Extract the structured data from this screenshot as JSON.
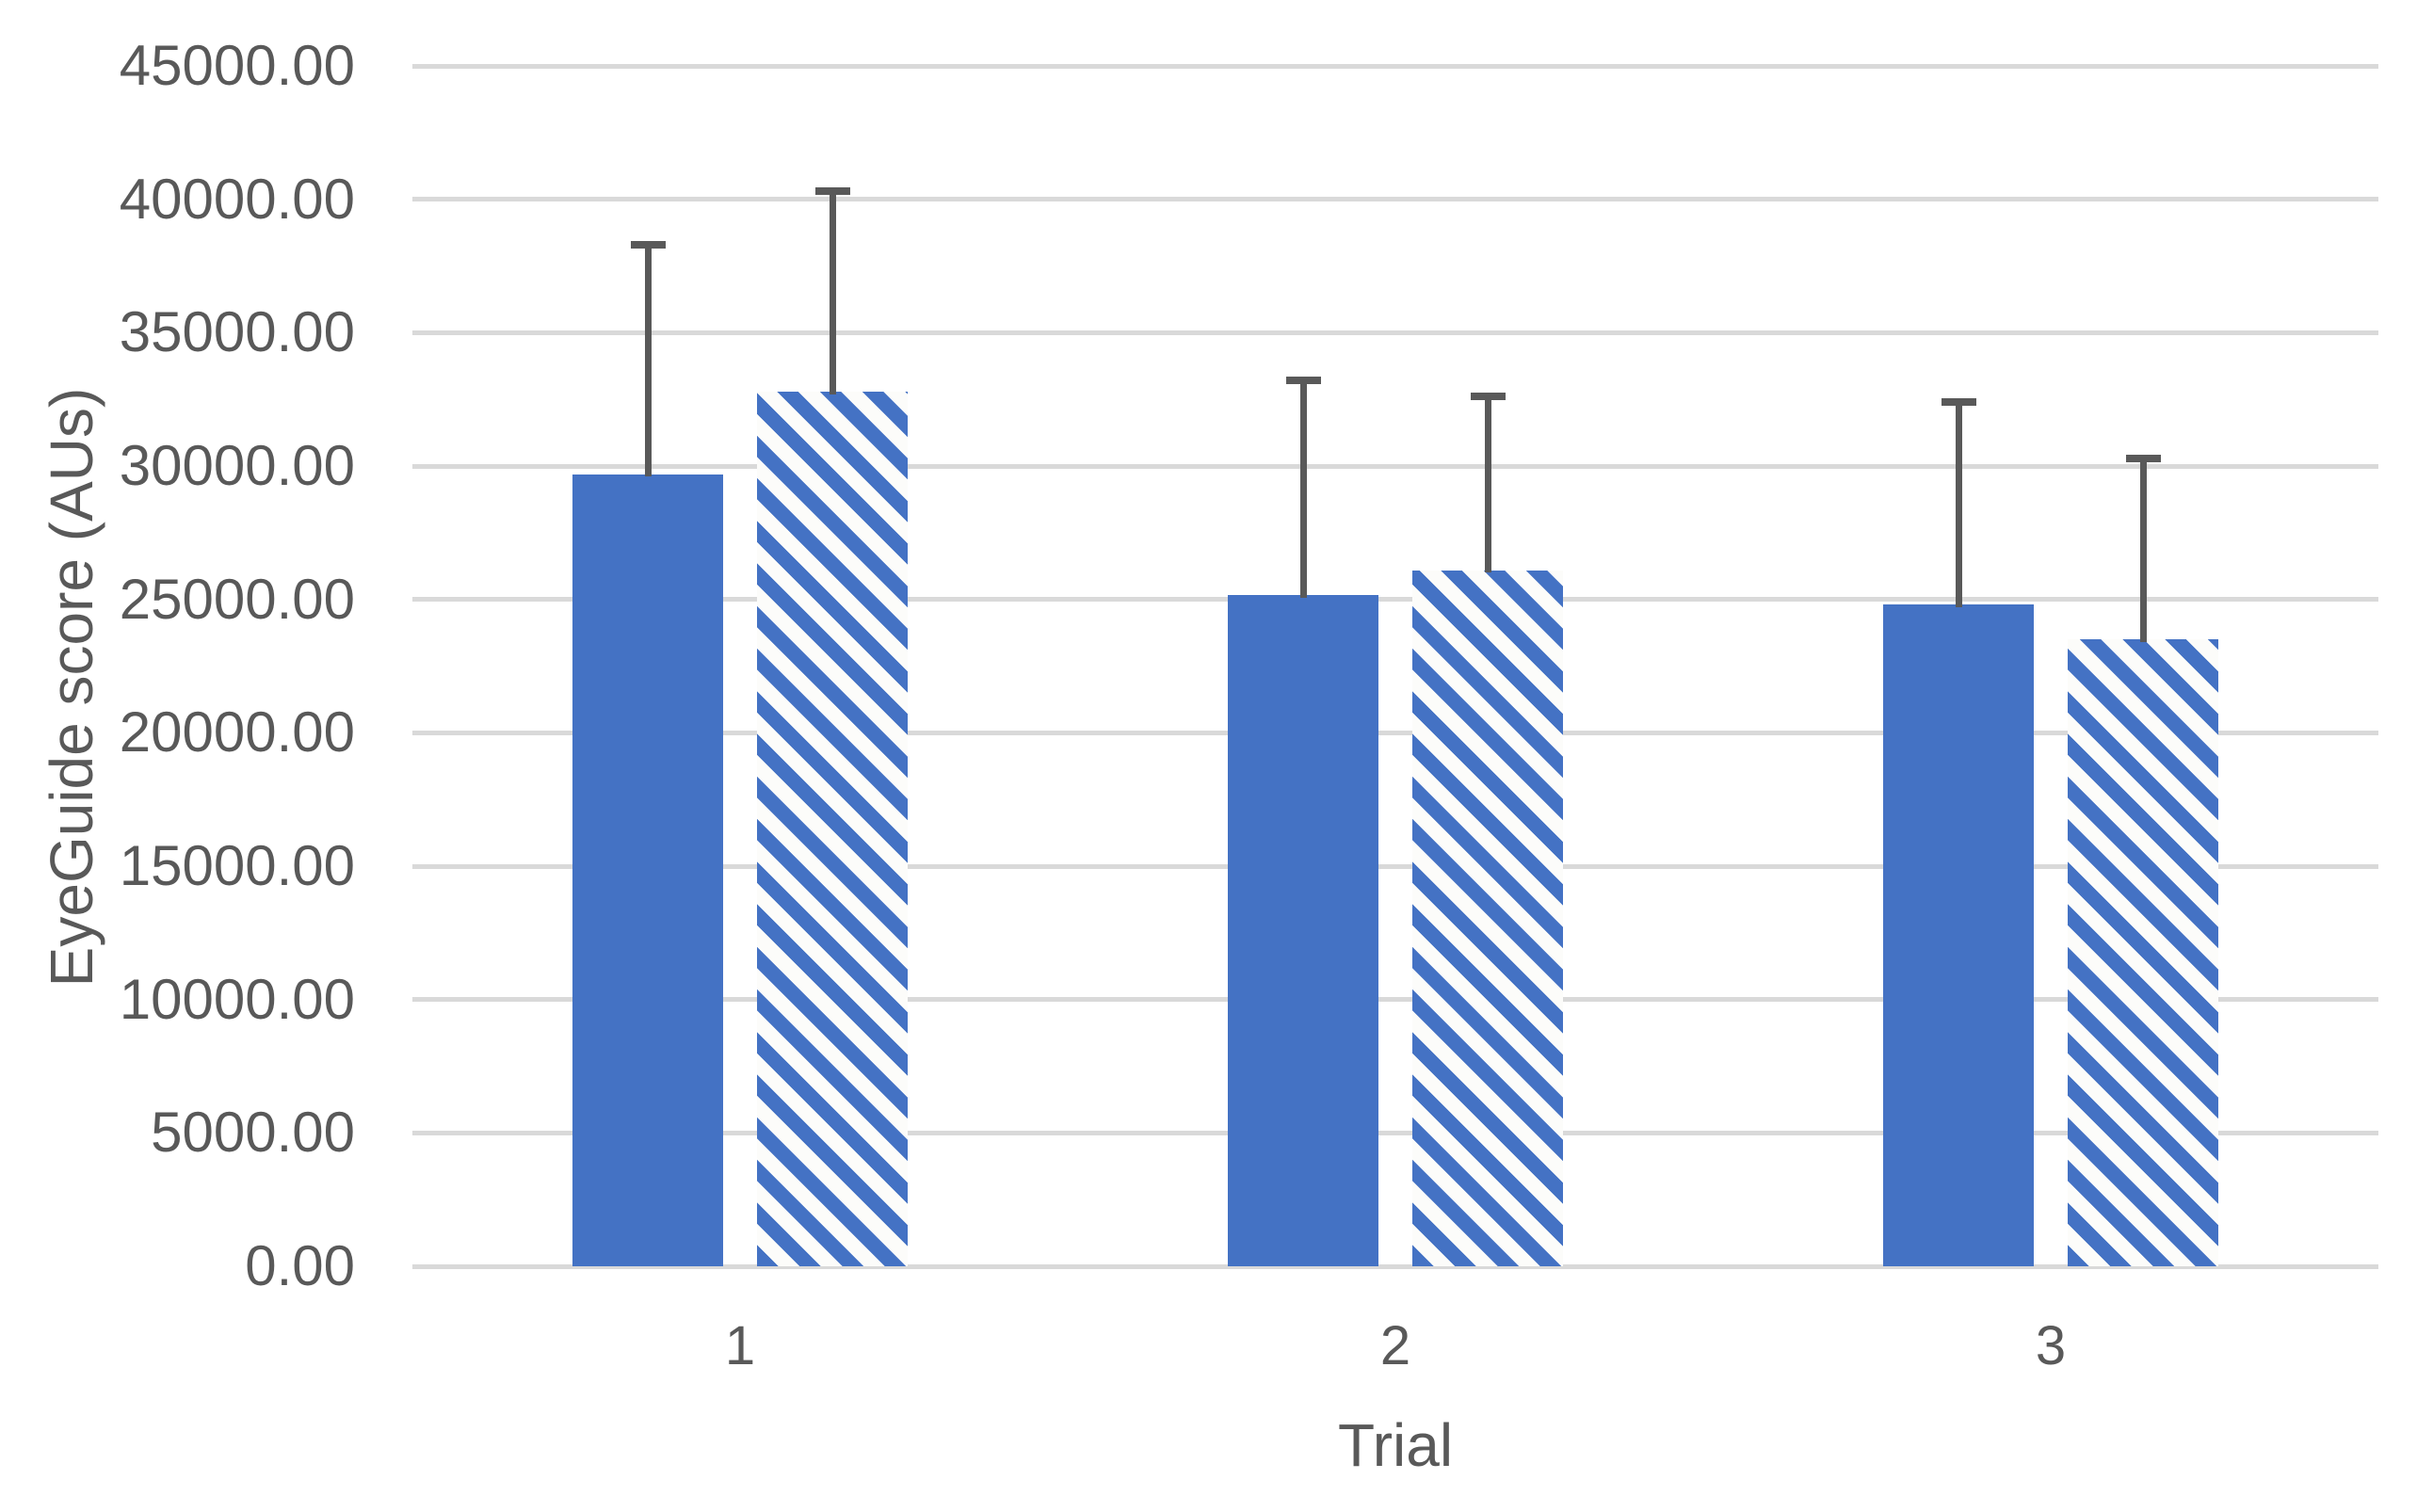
{
  "chart_data": {
    "type": "bar",
    "title": "",
    "xlabel": "Trial",
    "ylabel": "EyeGuide score (AUs)",
    "categories": [
      "1",
      "2",
      "3"
    ],
    "series": [
      {
        "name": "solid-blue",
        "fill_style": "solid",
        "values": [
          29700,
          25150,
          24800
        ],
        "error_plus": [
          8600,
          8050,
          7600
        ]
      },
      {
        "name": "blue-diagonal-stripe",
        "fill_style": "wide-downward-diagonal-pattern",
        "values": [
          32800,
          26100,
          23500
        ],
        "error_plus": [
          7500,
          6500,
          6800
        ]
      }
    ],
    "ylim": [
      0,
      45000
    ],
    "ytick_step": 5000,
    "ytick_labels": [
      "0.00",
      "5000.00",
      "10000.00",
      "15000.00",
      "20000.00",
      "25000.00",
      "30000.00",
      "35000.00",
      "40000.00",
      "45000.00"
    ],
    "grid": true,
    "legend": "none",
    "error_bars": "upper-only-with-caps",
    "colors": {
      "bar_fill": "#4472C4",
      "pattern_stripe": "#4472C4",
      "pattern_bg": "#FCFCFA",
      "error_bar": "#595959",
      "gridline": "#D9D9D9",
      "text": "#595959",
      "background": "#FFFFFF"
    }
  }
}
